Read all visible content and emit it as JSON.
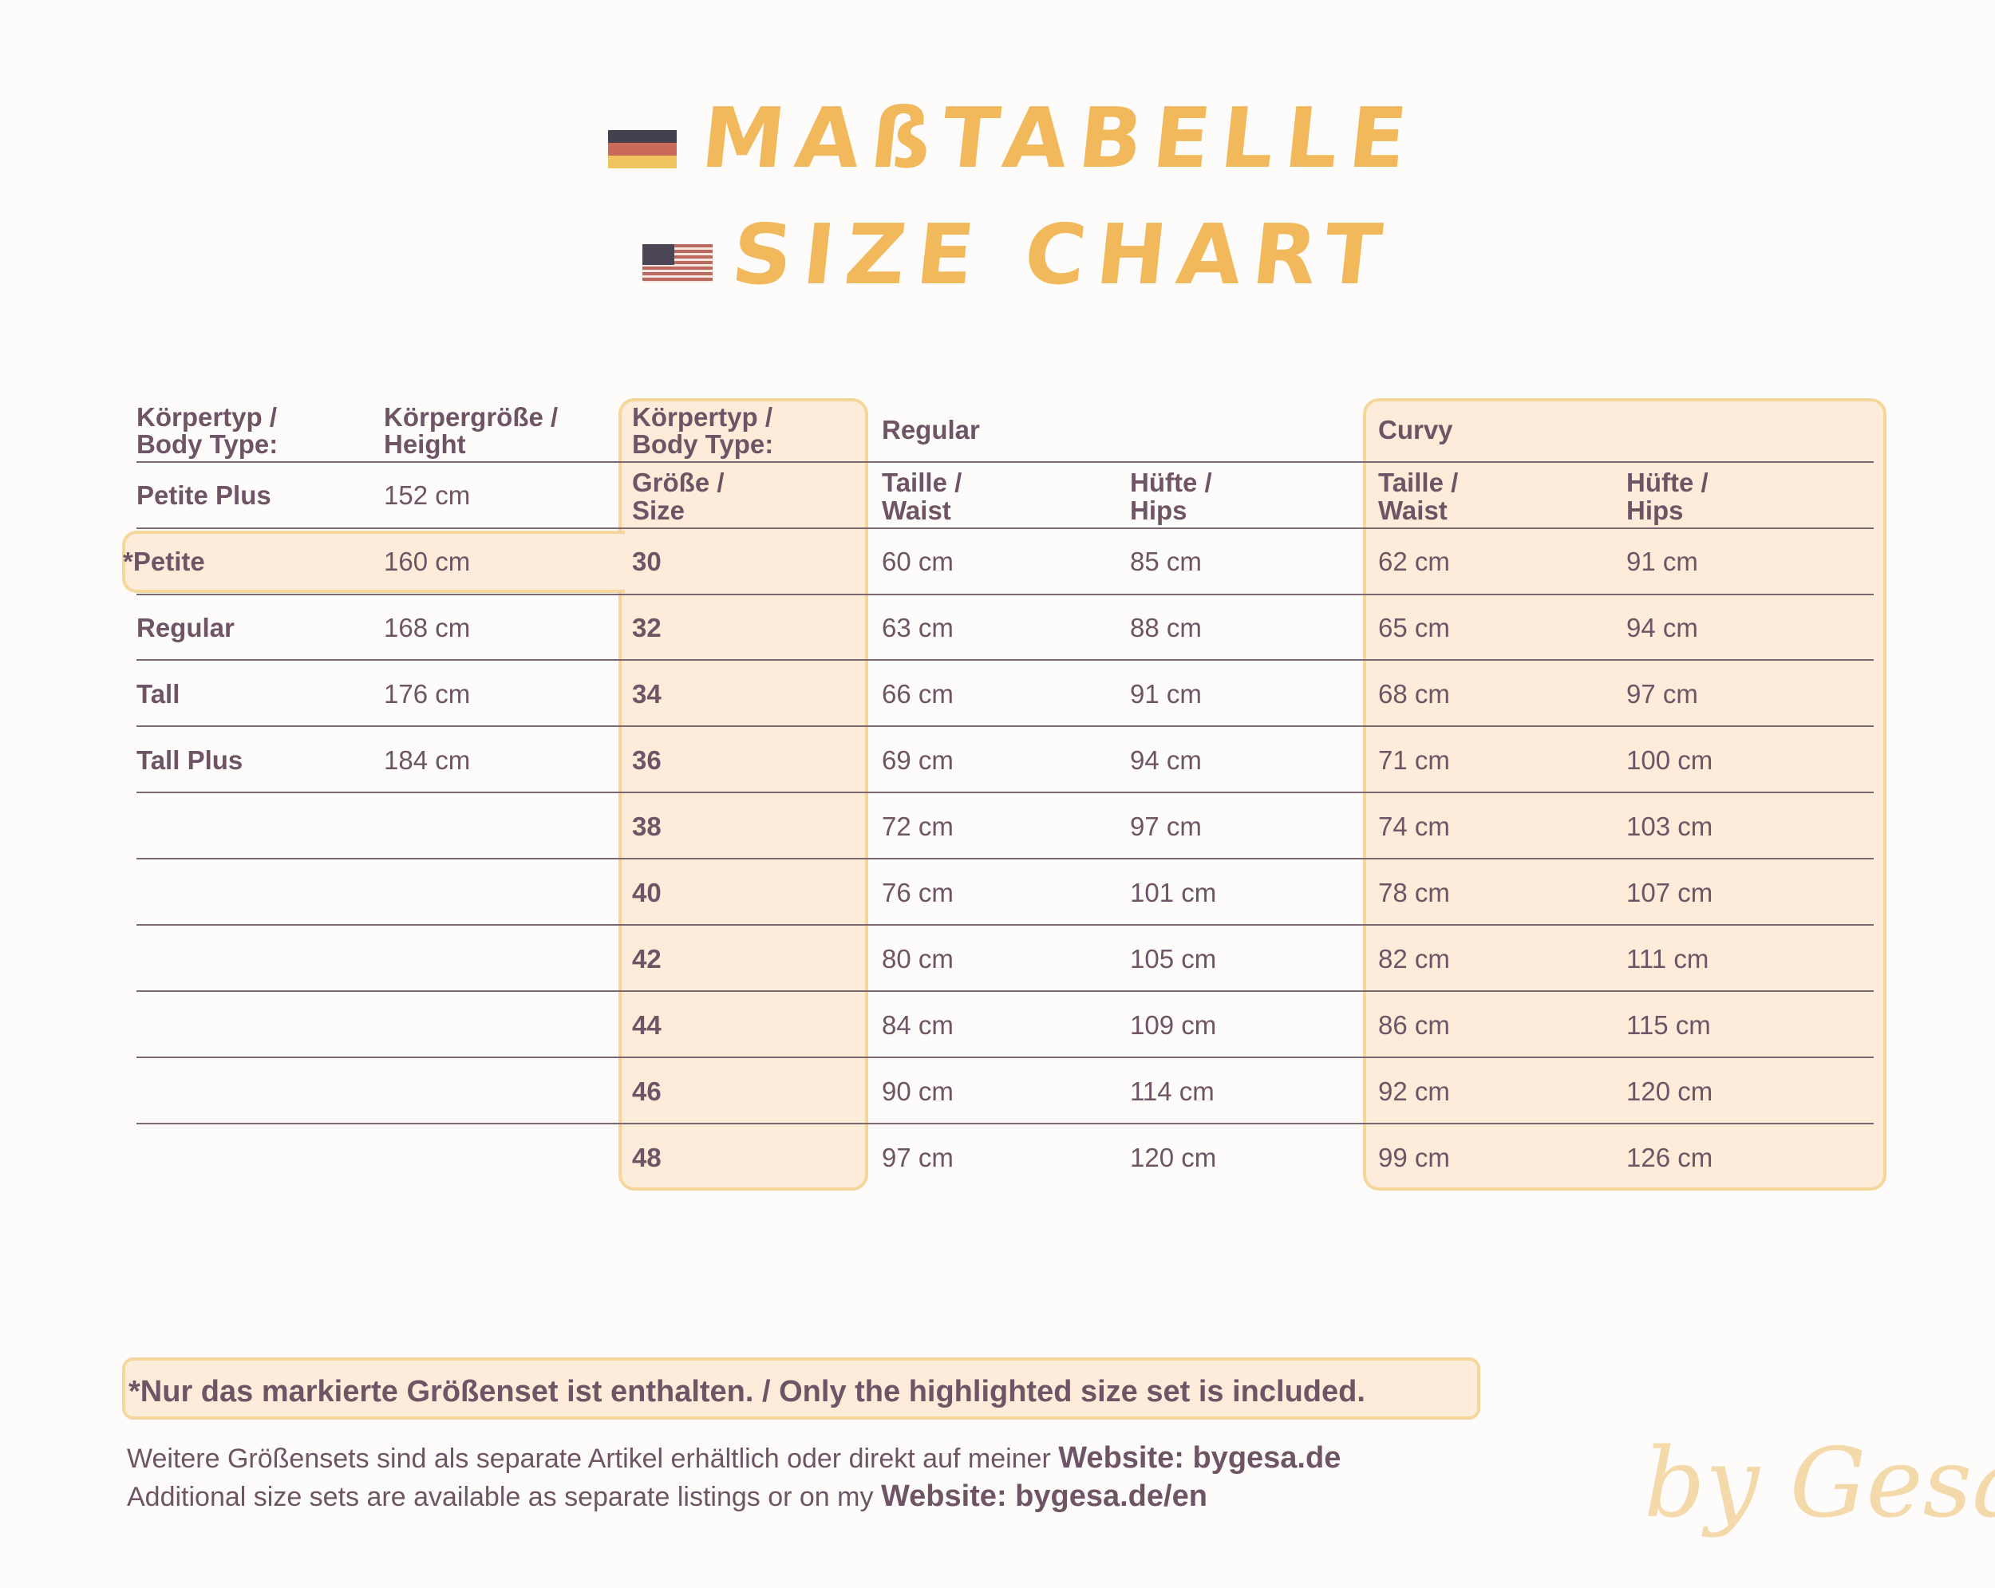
{
  "title": {
    "german": "MAßTABELLE",
    "english": "SIZE CHART"
  },
  "icons": {
    "german_flag": "flag-germany-icon",
    "us_flag": "flag-usa-icon"
  },
  "colors": {
    "accent": "#f2b95c",
    "highlight_fill": "#fcecd9",
    "highlight_border": "#f5d79c",
    "text": "#6e5464"
  },
  "table": {
    "headers": {
      "body_type": [
        "Körpertyp /",
        "Body Type:"
      ],
      "height": [
        "Körpergröße /",
        "Height"
      ],
      "size_body_type": [
        "Körpertyp /",
        "Body Type:"
      ],
      "size": [
        "Größe /",
        "Size"
      ],
      "regular": "Regular",
      "curvy": "Curvy",
      "waist": [
        "Taille /",
        "Waist"
      ],
      "hips": [
        "Hüfte /",
        "Hips"
      ]
    },
    "body_types": [
      {
        "name": "Petite Plus",
        "height": "152 cm"
      },
      {
        "name": "*Petite",
        "height": "160 cm",
        "highlighted": true
      },
      {
        "name": "Regular",
        "height": "168 cm"
      },
      {
        "name": "Tall",
        "height": "176 cm"
      },
      {
        "name": "Tall Plus",
        "height": "184 cm"
      }
    ],
    "sizes": [
      {
        "size": "30",
        "regular_waist": "60 cm",
        "regular_hips": "85 cm",
        "curvy_waist": "62 cm",
        "curvy_hips": "91 cm"
      },
      {
        "size": "32",
        "regular_waist": "63 cm",
        "regular_hips": "88 cm",
        "curvy_waist": "65 cm",
        "curvy_hips": "94 cm"
      },
      {
        "size": "34",
        "regular_waist": "66 cm",
        "regular_hips": "91 cm",
        "curvy_waist": "68 cm",
        "curvy_hips": "97 cm"
      },
      {
        "size": "36",
        "regular_waist": "69 cm",
        "regular_hips": "94 cm",
        "curvy_waist": "71 cm",
        "curvy_hips": "100 cm"
      },
      {
        "size": "38",
        "regular_waist": "72 cm",
        "regular_hips": "97 cm",
        "curvy_waist": "74 cm",
        "curvy_hips": "103 cm"
      },
      {
        "size": "40",
        "regular_waist": "76 cm",
        "regular_hips": "101 cm",
        "curvy_waist": "78 cm",
        "curvy_hips": "107 cm"
      },
      {
        "size": "42",
        "regular_waist": "80 cm",
        "regular_hips": "105 cm",
        "curvy_waist": "82 cm",
        "curvy_hips": "111 cm"
      },
      {
        "size": "44",
        "regular_waist": "84 cm",
        "regular_hips": "109 cm",
        "curvy_waist": "86 cm",
        "curvy_hips": "115 cm"
      },
      {
        "size": "46",
        "regular_waist": "90 cm",
        "regular_hips": "114 cm",
        "curvy_waist": "92 cm",
        "curvy_hips": "120 cm"
      },
      {
        "size": "48",
        "regular_waist": "97 cm",
        "regular_hips": "120 cm",
        "curvy_waist": "99 cm",
        "curvy_hips": "126 cm"
      }
    ]
  },
  "footer": {
    "note": "*Nur das markierte Größenset ist enthalten. / Only the highlighted size set is included.",
    "line1_text": "Weitere Größensets sind als separate Artikel erhältlich oder direkt auf meiner ",
    "line1_link": "Website: bygesa.de",
    "line2_text": "Additional size sets are available as separate listings or on my ",
    "line2_link": "Website: bygesa.de/en"
  },
  "signature": "by Gesa"
}
